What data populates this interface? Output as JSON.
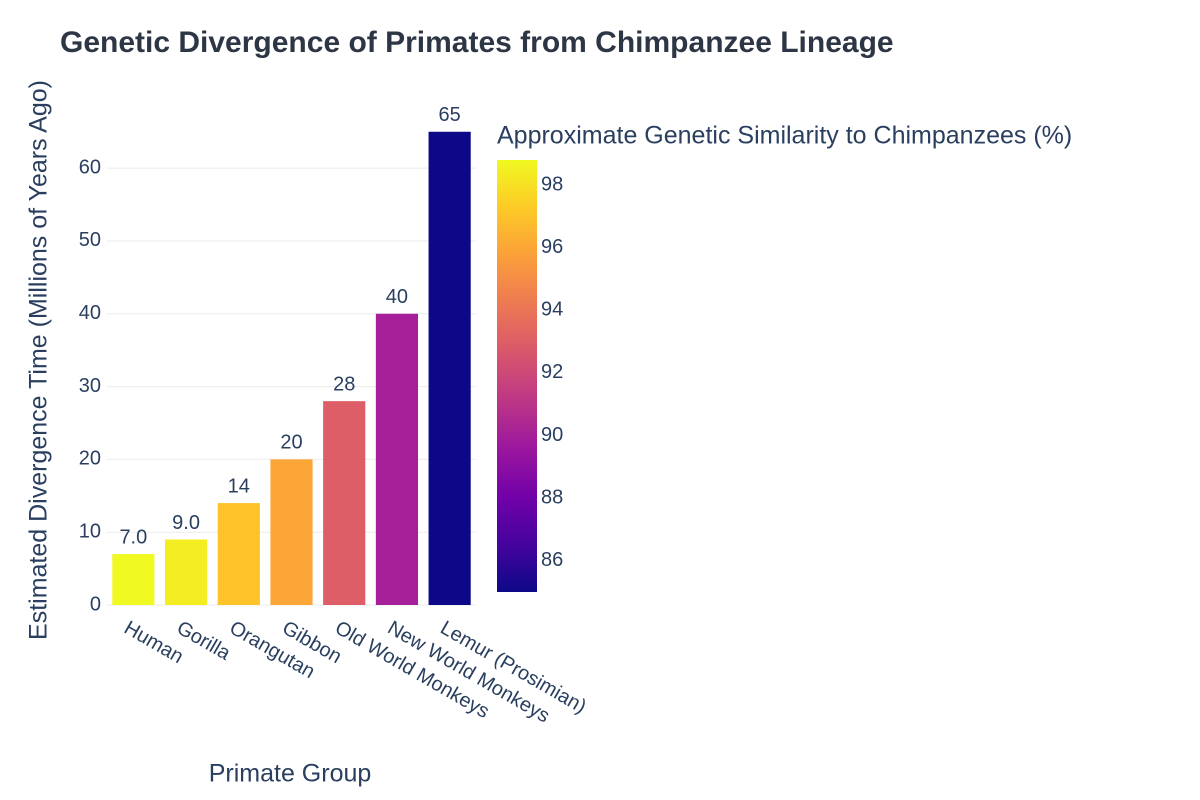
{
  "chart_data": {
    "type": "bar",
    "title": "Genetic Divergence of Primates from Chimpanzee Lineage",
    "x_label": "Primate Group",
    "y_label": "Estimated Divergence Time (Millions of Years Ago)",
    "categories": [
      "Human",
      "Gorilla",
      "Orangutan",
      "Gibbon",
      "Old World Monkeys",
      "New World Monkeys",
      "Lemur (Prosimian)"
    ],
    "values": [
      7,
      9,
      14,
      20,
      28,
      40,
      65
    ],
    "value_labels": [
      "7.0",
      "9.0",
      "14",
      "20",
      "28",
      "40",
      "65"
    ],
    "color_values": [
      98.8,
      98.4,
      97,
      96,
      93,
      90,
      85
    ],
    "colorscale": [
      "#0d0887",
      "#46039f",
      "#7201a8",
      "#9c179e",
      "#bd3786",
      "#d8576b",
      "#ed7953",
      "#fb9f3a",
      "#fdca26",
      "#f0f921"
    ],
    "colorbar": {
      "title": "Approximate Genetic Similarity to Chimpanzees (%)",
      "lim": [
        85,
        98.8
      ],
      "ticks": [
        86,
        88,
        90,
        92,
        94,
        96,
        98
      ]
    },
    "ylim": [
      0,
      68.4
    ],
    "yticks": [
      0,
      10,
      20,
      30,
      40,
      50,
      60
    ],
    "grid": true
  }
}
